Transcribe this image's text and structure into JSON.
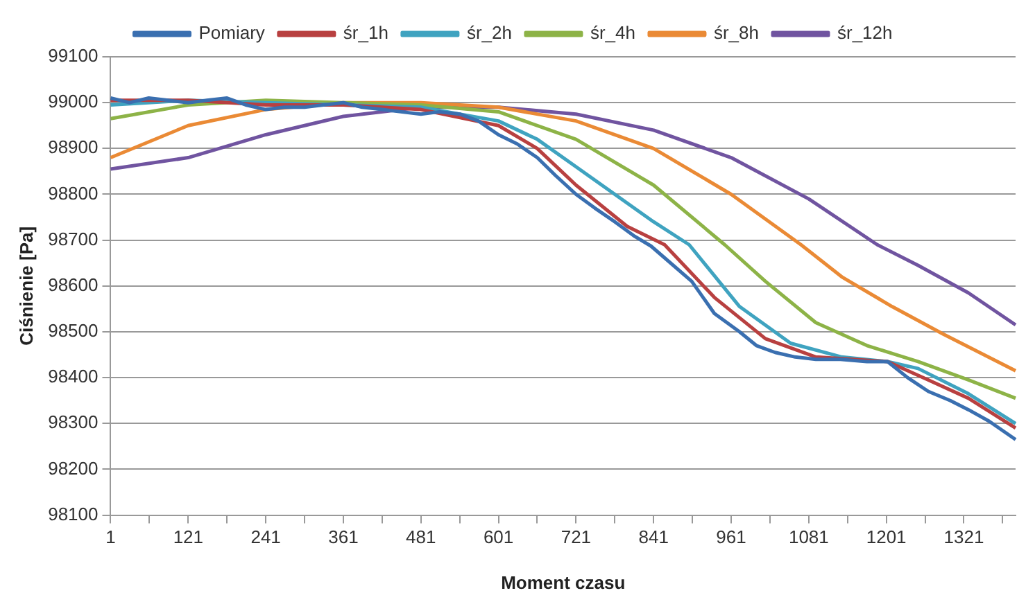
{
  "chart_data": {
    "type": "line",
    "xlabel": "Moment czasu",
    "ylabel": "Ciśnienie [Pa]",
    "legend": "top",
    "grid": "y",
    "marker": "none",
    "xlim": [
      1,
      1401
    ],
    "xticks": [
      1,
      {
        "value": 61,
        "label": null
      },
      121,
      {
        "value": 181,
        "label": null
      },
      241,
      {
        "value": 301,
        "label": null
      },
      361,
      {
        "value": 421,
        "label": null
      },
      481,
      {
        "value": 541,
        "label": null
      },
      601,
      {
        "value": 661,
        "label": null
      },
      721,
      {
        "value": 781,
        "label": null
      },
      841,
      {
        "value": 901,
        "label": null
      },
      961,
      {
        "value": 1021,
        "label": null
      },
      1081,
      {
        "value": 1141,
        "label": null
      },
      1201,
      {
        "value": 1261,
        "label": null
      },
      1321,
      {
        "value": 1381,
        "label": null
      }
    ],
    "ylim": [
      98100,
      99100
    ],
    "yticks": [
      98100,
      98200,
      98300,
      98400,
      98500,
      98600,
      98700,
      98800,
      98900,
      99000,
      99100
    ],
    "series": [
      {
        "name": "Pomiary",
        "color": "#3a6fb0",
        "x": [
          1,
          30,
          60,
          90,
          121,
          150,
          181,
          210,
          241,
          270,
          301,
          330,
          361,
          390,
          421,
          450,
          481,
          510,
          541,
          570,
          601,
          630,
          661,
          690,
          721,
          750,
          781,
          810,
          837,
          900,
          935,
          974,
          1000,
          1029,
          1060,
          1092,
          1130,
          1171,
          1203,
          1234,
          1266,
          1300,
          1328,
          1360,
          1401
        ],
        "values": [
          99010,
          99000,
          99010,
          99005,
          99000,
          99005,
          99010,
          98995,
          98985,
          98990,
          98990,
          98995,
          99000,
          98990,
          98985,
          98980,
          98975,
          98980,
          98975,
          98960,
          98930,
          98910,
          98880,
          98840,
          98800,
          98770,
          98740,
          98710,
          98687,
          98610,
          98540,
          98500,
          98470,
          98455,
          98445,
          98440,
          98440,
          98435,
          98435,
          98400,
          98370,
          98350,
          98330,
          98305,
          98265
        ]
      },
      {
        "name": "śr_1h",
        "color": "#b84040",
        "x": [
          1,
          121,
          241,
          361,
          481,
          601,
          661,
          721,
          800,
          858,
          935,
          1014,
          1092,
          1203,
          1266,
          1328,
          1401
        ],
        "values": [
          99005,
          99005,
          98995,
          98995,
          98985,
          98950,
          98900,
          98820,
          98730,
          98690,
          98575,
          98485,
          98445,
          98435,
          98395,
          98355,
          98290
        ]
      },
      {
        "name": "śr_2h",
        "color": "#3fa3c0",
        "x": [
          1,
          121,
          241,
          361,
          481,
          601,
          661,
          721,
          841,
          896,
          974,
          1053,
          1132,
          1203,
          1250,
          1328,
          1401
        ],
        "values": [
          98995,
          99005,
          99000,
          98995,
          98990,
          98960,
          98920,
          98860,
          98740,
          98690,
          98555,
          98475,
          98445,
          98435,
          98420,
          98365,
          98300
        ]
      },
      {
        "name": "śr_4h",
        "color": "#8db347",
        "x": [
          1,
          121,
          241,
          361,
          481,
          601,
          721,
          841,
          951,
          1014,
          1092,
          1171,
          1250,
          1328,
          1401
        ],
        "values": [
          98965,
          98995,
          99005,
          99000,
          98995,
          98980,
          98920,
          98820,
          98690,
          98610,
          98520,
          98470,
          98435,
          98395,
          98355
        ]
      },
      {
        "name": "śr_8h",
        "color": "#ea8a35",
        "x": [
          1,
          121,
          241,
          361,
          481,
          601,
          721,
          841,
          961,
          1069,
          1132,
          1210,
          1289,
          1401
        ],
        "values": [
          98880,
          98950,
          98985,
          99000,
          99000,
          98990,
          98960,
          98900,
          98800,
          98690,
          98620,
          98555,
          98495,
          98415
        ]
      },
      {
        "name": "śr_12h",
        "color": "#7054a0",
        "x": [
          1,
          121,
          241,
          361,
          481,
          601,
          721,
          841,
          961,
          1081,
          1187,
          1250,
          1328,
          1401
        ],
        "values": [
          98855,
          98880,
          98930,
          98970,
          98990,
          98990,
          98975,
          98940,
          98880,
          98790,
          98690,
          98645,
          98585,
          98515
        ]
      }
    ]
  }
}
